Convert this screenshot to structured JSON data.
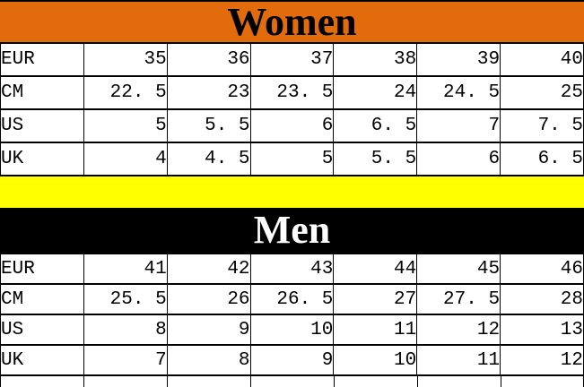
{
  "colors": {
    "women_header_bg": "#e26c0c",
    "women_header_text": "#000000",
    "men_header_bg": "#000000",
    "men_header_text": "#ffffff",
    "divider_bg": "#ffff00",
    "grid_border": "#000000",
    "cell_text": "#000000",
    "table_bg": "#ffffff"
  },
  "chart_data": [
    {
      "type": "table",
      "title": "Women",
      "header_bg": "#e26c0c",
      "header_text_color": "#000000",
      "row_labels": [
        "EUR",
        "CM",
        "US",
        "UK"
      ],
      "rows": [
        {
          "label": "EUR",
          "values": [
            35,
            36,
            37,
            38,
            39,
            40
          ],
          "display": [
            "35",
            "36",
            "37",
            "38",
            "39",
            "40"
          ]
        },
        {
          "label": "CM",
          "values": [
            22.5,
            23,
            23.5,
            24,
            24.5,
            25
          ],
          "display": [
            "22. 5",
            "23",
            "23. 5",
            "24",
            "24. 5",
            "25"
          ]
        },
        {
          "label": "US",
          "values": [
            5,
            5.5,
            6,
            6.5,
            7,
            7.5
          ],
          "display": [
            "5",
            "5. 5",
            "6",
            "6. 5",
            "7",
            "7. 5"
          ]
        },
        {
          "label": "UK",
          "values": [
            4,
            4.5,
            5,
            5.5,
            6,
            6.5
          ],
          "display": [
            "4",
            "4. 5",
            "5",
            "5. 5",
            "6",
            "6. 5"
          ]
        }
      ]
    },
    {
      "type": "table",
      "title": "Men",
      "header_bg": "#000000",
      "header_text_color": "#ffffff",
      "row_labels": [
        "EUR",
        "CM",
        "US",
        "UK"
      ],
      "rows": [
        {
          "label": "EUR",
          "values": [
            41,
            42,
            43,
            44,
            45,
            46
          ],
          "display": [
            "41",
            "42",
            "43",
            "44",
            "45",
            "46"
          ]
        },
        {
          "label": "CM",
          "values": [
            25.5,
            26,
            26.5,
            27,
            27.5,
            28
          ],
          "display": [
            "25. 5",
            "26",
            "26. 5",
            "27",
            "27. 5",
            "28"
          ]
        },
        {
          "label": "US",
          "values": [
            8,
            9,
            10,
            11,
            12,
            13
          ],
          "display": [
            "8",
            "9",
            "10",
            "11",
            "12",
            "13"
          ]
        },
        {
          "label": "UK",
          "values": [
            7,
            8,
            9,
            10,
            11,
            12
          ],
          "display": [
            "7",
            "8",
            "9",
            "10",
            "11",
            "12"
          ]
        }
      ]
    }
  ]
}
